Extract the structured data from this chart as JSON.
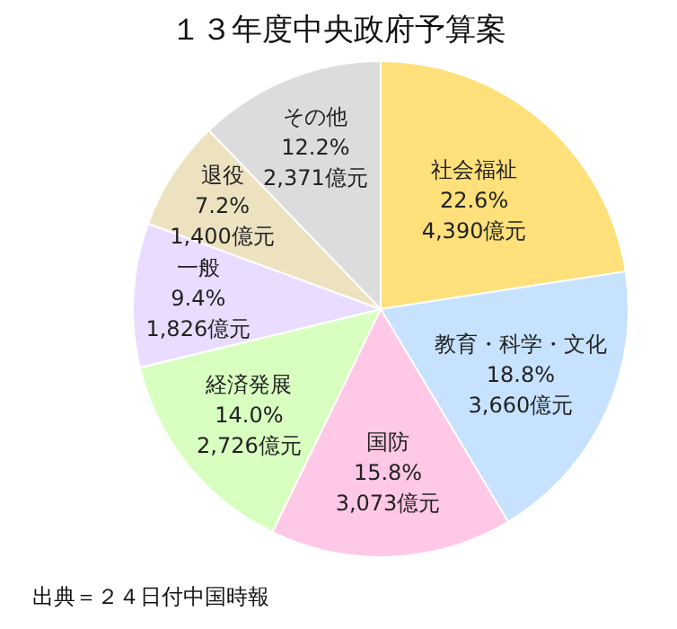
{
  "chart_data": {
    "type": "pie",
    "title": "１３年度中央政府予算案",
    "categories": [
      "社会福祉",
      "教育・科学・文化",
      "国防",
      "経済発展",
      "一般",
      "退役",
      "その他"
    ],
    "values": [
      4390,
      3660,
      3073,
      2726,
      1826,
      1400,
      2371
    ],
    "value_labels": [
      "22.6%\n4,390億元",
      "18.8%\n3,660億元",
      "15.8%\n3,073億元",
      "14.0%\n2,726億元",
      "9.4%\n1,826億元",
      "7.2%\n1,400億元",
      "12.2%\n2,371億元"
    ],
    "colors": [
      "#ffe07a",
      "#c6e2ff",
      "#ffc8e6",
      "#d8ffc0",
      "#eadcff",
      "#ede2c0",
      "#dcdcdc"
    ],
    "annotations": [
      "出典＝２４日付中国時報"
    ]
  }
}
